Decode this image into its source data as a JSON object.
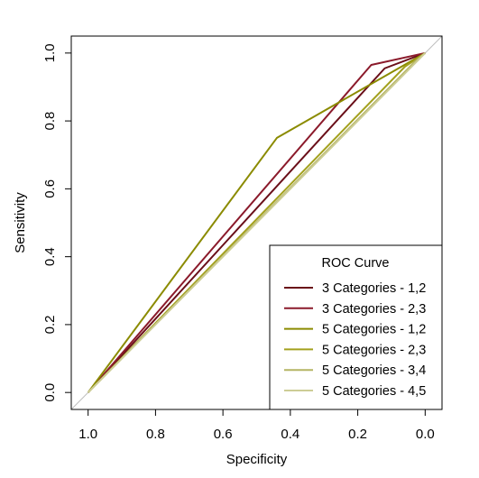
{
  "chart_data": {
    "type": "line",
    "xlabel": "Specificity",
    "ylabel": "Sensitivity",
    "xlim": [
      1.05,
      -0.05
    ],
    "ylim": [
      -0.05,
      1.05
    ],
    "x_reversed": true,
    "x_ticks": [
      1.0,
      0.8,
      0.6,
      0.4,
      0.2,
      0.0
    ],
    "x_tick_labels": [
      "1.0",
      "0.8",
      "0.6",
      "0.4",
      "0.2",
      "0.0"
    ],
    "y_ticks": [
      0.0,
      0.2,
      0.4,
      0.6,
      0.8,
      1.0
    ],
    "y_tick_labels": [
      "0.0",
      "0.2",
      "0.4",
      "0.6",
      "0.8",
      "1.0"
    ],
    "grid": false,
    "diagonal_reference": {
      "from": [
        1.05,
        -0.05
      ],
      "to": [
        -0.05,
        1.05
      ],
      "color": "#bebebe"
    },
    "legend": {
      "title": "ROC Curve",
      "position": "bottom-right"
    },
    "series": [
      {
        "name": "3 Categories - 1,2",
        "color": "#6a0f19",
        "points": [
          [
            1.0,
            0.0
          ],
          [
            0.12,
            0.955
          ],
          [
            0.0,
            1.0
          ]
        ]
      },
      {
        "name": "3 Categories - 2,3",
        "color": "#8b1a2b",
        "points": [
          [
            1.0,
            0.0
          ],
          [
            0.16,
            0.965
          ],
          [
            0.0,
            1.0
          ]
        ]
      },
      {
        "name": "5 Categories - 1,2",
        "color": "#8b8b00",
        "points": [
          [
            1.0,
            0.0
          ],
          [
            0.44,
            0.75
          ],
          [
            0.0,
            1.0
          ]
        ]
      },
      {
        "name": "5 Categories - 2,3",
        "color": "#a3a11e",
        "points": [
          [
            1.0,
            0.0
          ],
          [
            0.06,
            0.96
          ],
          [
            0.0,
            1.0
          ]
        ]
      },
      {
        "name": "5 Categories - 3,4",
        "color": "#b5b564",
        "points": [
          [
            1.0,
            0.0
          ],
          [
            0.03,
            0.975
          ],
          [
            0.0,
            1.0
          ]
        ]
      },
      {
        "name": "5 Categories - 4,5",
        "color": "#cdcd96",
        "points": [
          [
            1.0,
            0.0
          ],
          [
            0.0,
            1.0
          ]
        ]
      }
    ]
  }
}
